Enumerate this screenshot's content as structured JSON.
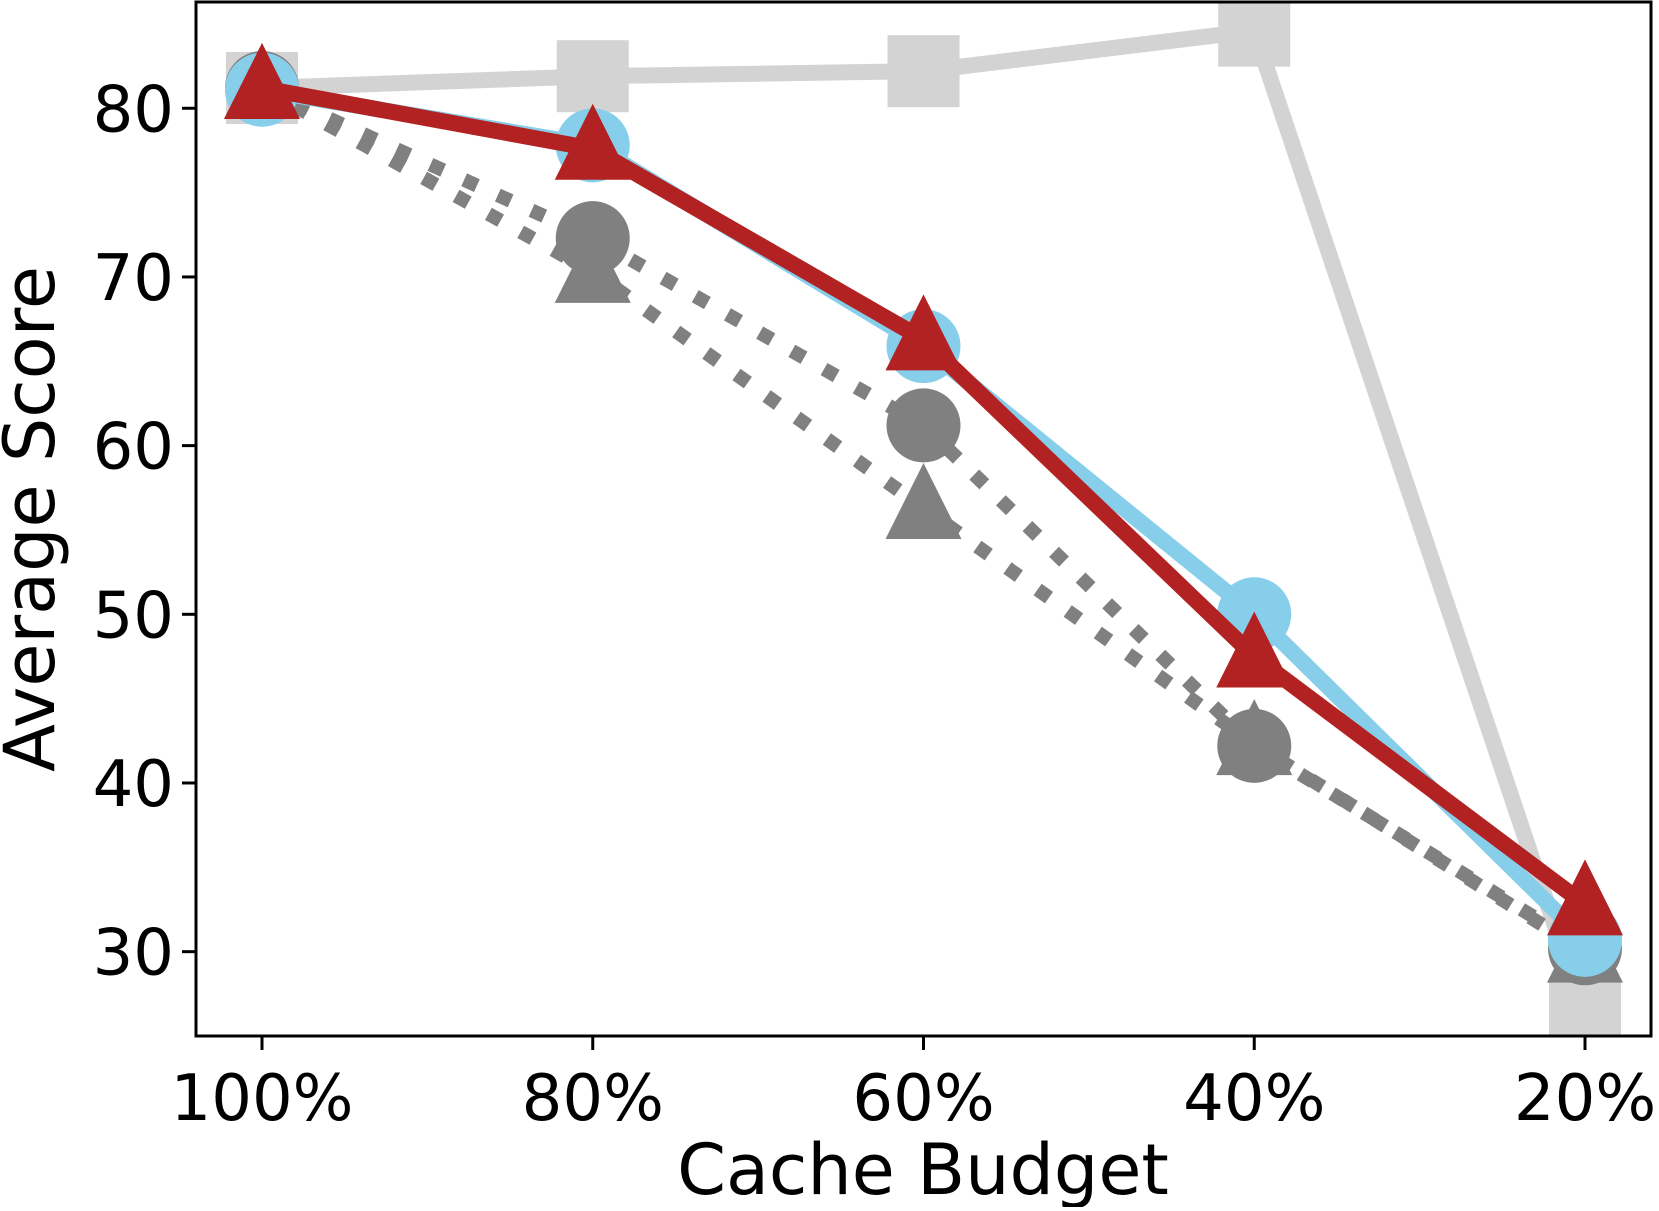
{
  "chart_data": {
    "type": "line",
    "title": "",
    "xlabel": "Cache Budget",
    "ylabel": "Average Score",
    "categories": [
      "100%",
      "80%",
      "60%",
      "40%",
      "20%"
    ],
    "yticks": [
      30,
      40,
      50,
      60,
      70,
      80
    ],
    "ylim": [
      25,
      86.3
    ],
    "grid": false,
    "legend": "none",
    "series": [
      {
        "values": [
          81.2,
          81.9,
          82.2,
          84.6,
          26.2
        ],
        "color": "#d3d3d3",
        "marker": "square",
        "line_style": "solid"
      },
      {
        "values": [
          81.2,
          72.3,
          61.2,
          42.2,
          30.2
        ],
        "color": "#808080",
        "marker": "circle",
        "line_style": "dotted"
      },
      {
        "values": [
          81.2,
          70.3,
          56.3,
          42.3,
          30.0
        ],
        "color": "#808080",
        "marker": "triangle",
        "line_style": "dotted"
      },
      {
        "values": [
          81.1,
          77.8,
          65.9,
          50.0,
          30.7
        ],
        "color": "#87ceeb",
        "marker": "circle",
        "line_style": "solid"
      },
      {
        "values": [
          81.2,
          77.6,
          66.3,
          47.5,
          32.8
        ],
        "color": "#b22222",
        "marker": "triangle",
        "line_style": "solid"
      }
    ]
  }
}
